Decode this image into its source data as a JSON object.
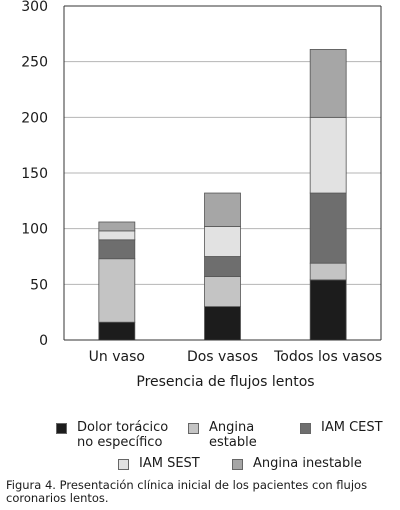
{
  "chart_data": {
    "type": "bar",
    "stacked": true,
    "categories": [
      "Un vaso",
      "Dos vasos",
      "Todos los vasos"
    ],
    "xlabel": "Presencia de flujos lentos",
    "ylabel": "",
    "ylim": [
      0,
      300
    ],
    "yticks": [
      "0",
      "50",
      "100",
      "150",
      "200",
      "250",
      "300"
    ],
    "grid": true,
    "legend_position": "bottom",
    "series": [
      {
        "name": "Dolor torácico no específico",
        "values": [
          16,
          30,
          54
        ],
        "color": "#1c1c1c"
      },
      {
        "name": "Angina estable",
        "values": [
          57,
          27,
          15
        ],
        "color": "#c4c4c4"
      },
      {
        "name": "IAM CEST",
        "values": [
          17,
          18,
          63
        ],
        "color": "#6e6e6e"
      },
      {
        "name": "IAM SEST",
        "values": [
          8,
          27,
          68
        ],
        "color": "#e2e2e2"
      },
      {
        "name": "Angina inestable",
        "values": [
          8,
          30,
          61
        ],
        "color": "#a6a6a6"
      }
    ]
  },
  "caption": "Figura 4. Presentación clínica inicial de los pacientes con flujos coronarios lentos."
}
